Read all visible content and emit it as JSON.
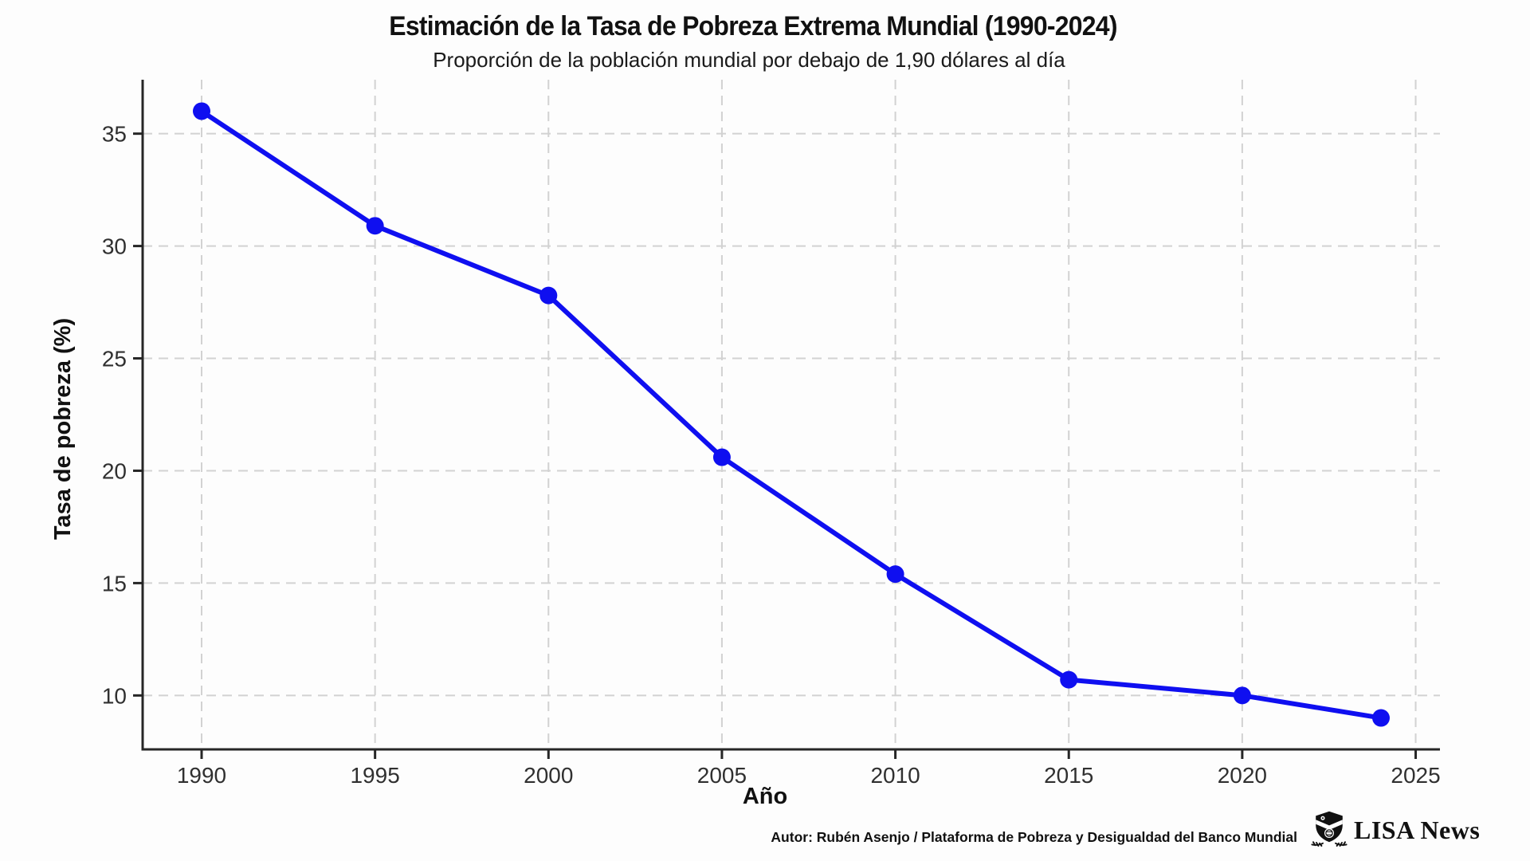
{
  "chart_data": {
    "type": "line",
    "title": "Estimación de la Tasa de Pobreza Extrema Mundial (1990-2024)",
    "subtitle": "Proporción de la población mundial por debajo de 1,90 dólares al día",
    "xlabel": "Año",
    "ylabel": "Tasa de pobreza (%)",
    "x": [
      1990,
      1995,
      2000,
      2005,
      2010,
      2015,
      2020,
      2024
    ],
    "y": [
      36.0,
      30.9,
      27.8,
      20.6,
      15.4,
      10.7,
      10.0,
      9.0
    ],
    "xticks": [
      1990,
      1995,
      2000,
      2005,
      2010,
      2015,
      2020,
      2025
    ],
    "yticks": [
      10,
      15,
      20,
      25,
      30,
      35
    ],
    "xlim": [
      1988.3,
      2025.7
    ],
    "ylim": [
      7.6,
      37.4
    ],
    "grid": true,
    "grid_style": "dashed",
    "legend": "none",
    "line_color": "#0f0ff0",
    "marker": "circle",
    "marker_radius": 11,
    "line_width": 6
  },
  "footer": {
    "credit": "Autor: Rubén Asenjo / Plataforma de Pobreza y Desigualdad del Banco Mundial",
    "brand": "LISA News"
  },
  "colors": {
    "background": "#fdfdfd",
    "grid": "#d2d2d2",
    "axis": "#262626",
    "tick_text": "#303030",
    "title_text": "#111111"
  }
}
